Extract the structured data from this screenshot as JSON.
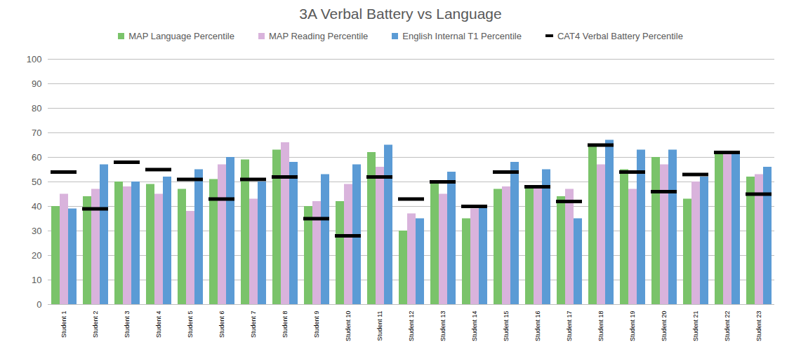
{
  "chart_data": {
    "type": "bar",
    "title": "3A Verbal Battery vs Language",
    "categories": [
      "Student 1",
      "Student 2",
      "Student 3",
      "Student 4",
      "Student 5",
      "Student 6",
      "Student 7",
      "Student 8",
      "Student 9",
      "Student 10",
      "Student 11",
      "Student 12",
      "Student 13",
      "Student 14",
      "Student 15",
      "Student 16",
      "Student 17",
      "Student 18",
      "Student 19",
      "Student 20",
      "Student 21",
      "Student 22",
      "Student 23"
    ],
    "series": [
      {
        "name": "MAP Language Percentile",
        "color": "#7ac36a",
        "type": "bar",
        "values": [
          40,
          44,
          50,
          49,
          47,
          51,
          59,
          63,
          40,
          42,
          62,
          30,
          50,
          35,
          47,
          48,
          44,
          65,
          55,
          60,
          43,
          62,
          52
        ]
      },
      {
        "name": "MAP Reading Percentile",
        "color": "#d9b3dc",
        "type": "bar",
        "values": [
          45,
          47,
          48,
          45,
          38,
          57,
          43,
          66,
          42,
          49,
          56,
          37,
          45,
          39,
          48,
          48,
          47,
          57,
          47,
          57,
          50,
          62,
          53
        ]
      },
      {
        "name": "English Internal T1 Percentile",
        "color": "#5b9bd5",
        "type": "bar",
        "values": [
          39,
          57,
          50,
          52,
          55,
          60,
          50,
          58,
          53,
          57,
          65,
          35,
          54,
          40,
          58,
          55,
          35,
          67,
          63,
          63,
          52,
          62,
          56
        ]
      },
      {
        "name": "CAT4  Verbal Battery Percentile",
        "color": "#000000",
        "type": "marker",
        "marker": "dash",
        "values": [
          54,
          39,
          58,
          55,
          51,
          43,
          51,
          52,
          35,
          28,
          52,
          43,
          50,
          40,
          54,
          48,
          42,
          65,
          54,
          46,
          53,
          62,
          45
        ]
      }
    ],
    "ylim": [
      0,
      100
    ],
    "yticks": [
      0,
      10,
      20,
      30,
      40,
      50,
      60,
      70,
      80,
      90,
      100
    ],
    "grid": true,
    "legend": "top"
  }
}
